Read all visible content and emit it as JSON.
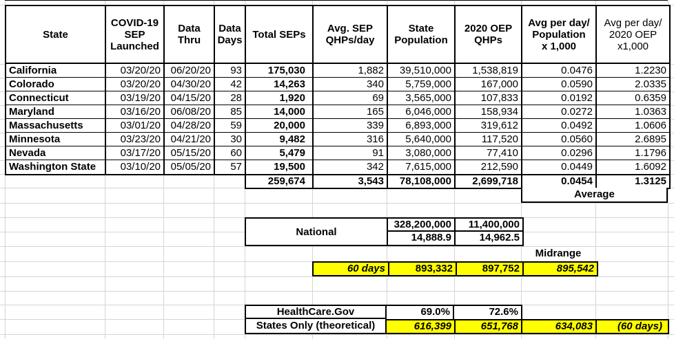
{
  "table": {
    "headers": [
      "State",
      "COVID-19\nSEP\nLaunched",
      "Data\nThru",
      "Data\nDays",
      "Total SEPs",
      "Avg. SEP\nQHPs/day",
      "State\nPopulation",
      "2020 OEP\nQHPs",
      "Avg per day/\nPopulation\nx 1,000",
      "Avg per day/\n2020 OEP\nx1,000"
    ],
    "column_keys": [
      "state",
      "sep-launched",
      "data-thru",
      "data-days",
      "total-seps",
      "avg-sep-qhps-day",
      "state-population",
      "oep-qhps",
      "avg-per-day-population",
      "avg-per-day-oep"
    ],
    "rows": [
      [
        "California",
        "03/20/20",
        "06/20/20",
        "93",
        "175,030",
        "1,882",
        "39,510,000",
        "1,538,819",
        "0.0476",
        "1.2230"
      ],
      [
        "Colorado",
        "03/20/20",
        "04/30/20",
        "42",
        "14,263",
        "340",
        "5,759,000",
        "167,000",
        "0.0590",
        "2.0335"
      ],
      [
        "Connecticut",
        "03/19/20",
        "04/15/20",
        "28",
        "1,920",
        "69",
        "3,565,000",
        "107,833",
        "0.0192",
        "0.6359"
      ],
      [
        "Maryland",
        "03/16/20",
        "06/08/20",
        "85",
        "14,000",
        "165",
        "6,046,000",
        "158,934",
        "0.0272",
        "1.0363"
      ],
      [
        "Massachusetts",
        "03/01/20",
        "04/28/20",
        "59",
        "20,000",
        "339",
        "6,893,000",
        "319,612",
        "0.0492",
        "1.0606"
      ],
      [
        "Minnesota",
        "03/23/20",
        "04/21/20",
        "30",
        "9,482",
        "316",
        "5,640,000",
        "117,520",
        "0.0560",
        "2.6895"
      ],
      [
        "Nevada",
        "03/17/20",
        "05/15/20",
        "60",
        "5,479",
        "91",
        "3,080,000",
        "77,410",
        "0.0296",
        "1.1796"
      ],
      [
        "Washington State",
        "03/10/20",
        "05/05/20",
        "57",
        "19,500",
        "342",
        "7,615,000",
        "212,590",
        "0.0449",
        "1.6092"
      ]
    ],
    "totals": [
      "259,674",
      "3,543",
      "78,108,000",
      "2,699,718",
      "0.0454",
      "1.3125"
    ],
    "average_label": "Average"
  },
  "national": {
    "label": "National",
    "row1": [
      "328,200,000",
      "11,400,000"
    ],
    "row2": [
      "14,888.9",
      "14,962.5"
    ]
  },
  "midrange_label": "Midrange",
  "sixty_day_row": {
    "label": "60 days",
    "values": [
      "893,332",
      "897,752",
      "895,542"
    ]
  },
  "healthcare": {
    "label_row1": "HealthCare.Gov",
    "label_row2": "States Only (theoretical)",
    "percentages": [
      "69.0%",
      "72.6%"
    ],
    "theoretical": [
      "616,399",
      "651,768",
      "634,083",
      "(60 days)"
    ]
  },
  "colors": {
    "highlight": "#ffff00",
    "border": "#000000",
    "gridline": "#d5d5d5"
  }
}
